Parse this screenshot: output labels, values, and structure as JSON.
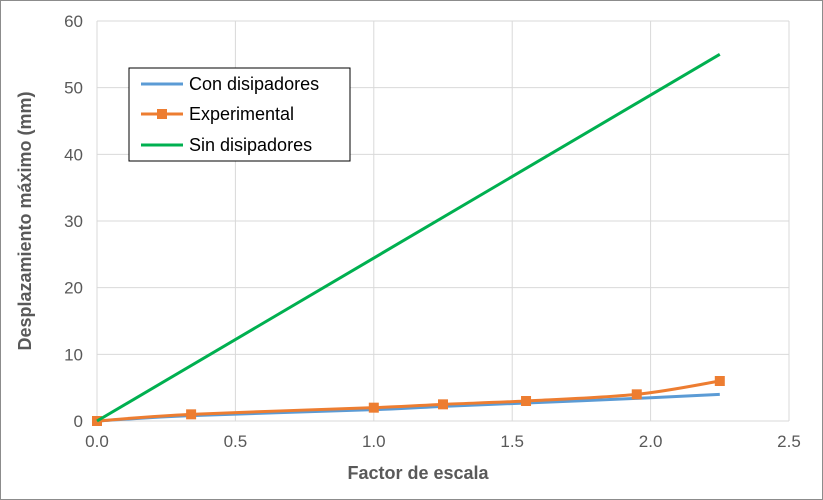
{
  "chart_data": {
    "type": "line",
    "title": "",
    "xlabel": "Factor de escala",
    "ylabel": "Desplazamiento máximo (mm)",
    "xlim": [
      0,
      2.5
    ],
    "ylim": [
      0,
      60
    ],
    "xticks": [
      "0.0",
      "0.5",
      "1.0",
      "1.5",
      "2.0",
      "2.5"
    ],
    "yticks": [
      "0",
      "10",
      "20",
      "30",
      "40",
      "50",
      "60"
    ],
    "grid": true,
    "legend_position": "top-left",
    "series": [
      {
        "name": "Con disipadores",
        "color": "#5b9bd5",
        "marker": "none",
        "x": [
          0,
          0.34,
          1.0,
          1.25,
          1.55,
          1.95,
          2.25
        ],
        "y": [
          0,
          0.8,
          1.7,
          2.2,
          2.7,
          3.4,
          4.0
        ]
      },
      {
        "name": "Experimental",
        "color": "#ed7d31",
        "marker": "square",
        "x": [
          0,
          0.34,
          1.0,
          1.25,
          1.55,
          1.95,
          2.25
        ],
        "y": [
          0,
          1.0,
          2.0,
          2.5,
          3.0,
          4.0,
          6.0
        ]
      },
      {
        "name": "Sin disipadores",
        "color": "#00b050",
        "marker": "none",
        "x": [
          0,
          2.25
        ],
        "y": [
          0,
          55
        ]
      }
    ]
  }
}
